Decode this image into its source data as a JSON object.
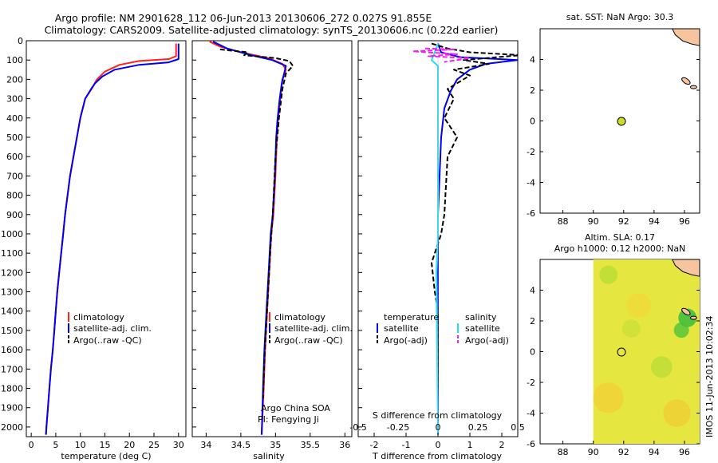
{
  "header": {
    "line1": "Argo profile: NM 2901628_112 06-Jun-2013 20130606_272 0.027S 91.855E",
    "line2": "Climatology: CARS2009. Satellite-adjusted climatology: synTS_20130606.nc (0.22d earlier)"
  },
  "side_stamp": "IMOS 11-Jun-2013 10:02:34",
  "colors": {
    "climatology": "#ff2020",
    "satellite": "#0000ee",
    "argo": "#000000",
    "sat_salinity": "#22e0ee",
    "argo_salinity": "#ee22ee",
    "land": "#f6c49e",
    "marker": "#ccdd22"
  },
  "chart_data": [
    {
      "type": "line",
      "id": "temperature",
      "xlabel": "temperature (deg C)",
      "xlim": [
        -1,
        31.5
      ],
      "xticks": [
        0,
        5,
        10,
        15,
        20,
        25,
        30
      ],
      "ylim": [
        2050,
        0
      ],
      "yticks": [
        0,
        100,
        200,
        300,
        400,
        500,
        600,
        700,
        800,
        900,
        1000,
        1100,
        1200,
        1300,
        1400,
        1500,
        1600,
        1700,
        1800,
        1900,
        2000
      ],
      "legend": [
        "climatology",
        "satellite-adj. clim.",
        "Argo(..raw -QC)"
      ],
      "series": [
        {
          "name": "climatology",
          "color": "climatology",
          "dash": false,
          "points": [
            [
              29.5,
              15
            ],
            [
              29.5,
              80
            ],
            [
              28,
              95
            ],
            [
              22,
              105
            ],
            [
              18,
              125
            ],
            [
              15,
              160
            ],
            [
              13.4,
              200
            ],
            [
              12.3,
              250
            ],
            [
              11,
              300
            ],
            [
              10,
              400
            ],
            [
              9.3,
              500
            ],
            [
              8.6,
              600
            ],
            [
              7.9,
              700
            ],
            [
              7.4,
              800
            ],
            [
              6.9,
              900
            ],
            [
              6.5,
              1000
            ],
            [
              6.1,
              1100
            ],
            [
              5.7,
              1200
            ],
            [
              5.3,
              1300
            ],
            [
              5,
              1400
            ],
            [
              4.7,
              1500
            ],
            [
              4.4,
              1600
            ],
            [
              4,
              1700
            ],
            [
              3.7,
              1800
            ],
            [
              3.4,
              1900
            ],
            [
              3.1,
              2000
            ],
            [
              3,
              2040
            ]
          ]
        },
        {
          "name": "satellite-adj. clim.",
          "color": "satellite",
          "dash": false,
          "points": [
            [
              30,
              15
            ],
            [
              30,
              95
            ],
            [
              28,
              112
            ],
            [
              22,
              125
            ],
            [
              17,
              150
            ],
            [
              14.5,
              185
            ],
            [
              13,
              220
            ],
            [
              12.2,
              250
            ],
            [
              11,
              300
            ],
            [
              10,
              400
            ],
            [
              9.3,
              500
            ],
            [
              8.6,
              600
            ],
            [
              7.9,
              700
            ],
            [
              7.4,
              800
            ],
            [
              6.9,
              900
            ],
            [
              6.5,
              1000
            ],
            [
              6.1,
              1100
            ],
            [
              5.7,
              1200
            ],
            [
              5.3,
              1300
            ],
            [
              5,
              1400
            ],
            [
              4.7,
              1500
            ],
            [
              4.4,
              1600
            ],
            [
              4,
              1700
            ],
            [
              3.7,
              1800
            ],
            [
              3.4,
              1900
            ],
            [
              3.1,
              2000
            ],
            [
              3,
              2040
            ]
          ]
        }
      ]
    },
    {
      "type": "line",
      "id": "salinity",
      "xlabel": "salinity",
      "xlim": [
        33.8,
        36.1
      ],
      "xticks": [
        34,
        34.5,
        35,
        35.5,
        36
      ],
      "ylim": [
        2050,
        0
      ],
      "legend": [
        "climatology",
        "satellite-adj. clim.",
        "Argo(..raw -QC)"
      ],
      "annotation": [
        "Argo China SOA",
        "PI: Fengying Ji"
      ],
      "series": [
        {
          "name": "climatology",
          "color": "climatology",
          "dash": false,
          "points": [
            [
              34.05,
              5
            ],
            [
              34.2,
              30
            ],
            [
              34.5,
              60
            ],
            [
              34.9,
              90
            ],
            [
              35.1,
              120
            ],
            [
              35.15,
              150
            ],
            [
              35.1,
              200
            ],
            [
              35.07,
              300
            ],
            [
              35.04,
              400
            ],
            [
              35.02,
              500
            ],
            [
              35.0,
              700
            ],
            [
              34.97,
              900
            ],
            [
              34.94,
              1000
            ],
            [
              34.91,
              1200
            ],
            [
              34.88,
              1400
            ],
            [
              34.85,
              1600
            ],
            [
              34.83,
              1800
            ],
            [
              34.8,
              2040
            ]
          ]
        },
        {
          "name": "satellite-adj. clim.",
          "color": "satellite",
          "dash": false,
          "points": [
            [
              34.1,
              5
            ],
            [
              34.3,
              40
            ],
            [
              34.65,
              75
            ],
            [
              34.95,
              100
            ],
            [
              35.15,
              130
            ],
            [
              35.13,
              160
            ],
            [
              35.09,
              220
            ],
            [
              35.06,
              300
            ],
            [
              35.03,
              400
            ],
            [
              35.01,
              500
            ],
            [
              34.99,
              700
            ],
            [
              34.96,
              900
            ],
            [
              34.93,
              1000
            ],
            [
              34.9,
              1200
            ],
            [
              34.87,
              1400
            ],
            [
              34.84,
              1600
            ],
            [
              34.82,
              1800
            ],
            [
              34.8,
              2040
            ]
          ]
        },
        {
          "name": "Argo(..raw -QC)",
          "color": "argo",
          "dash": true,
          "points": [
            [
              34.2,
              45
            ],
            [
              34.6,
              60
            ],
            [
              34.55,
              75
            ],
            [
              35.0,
              90
            ],
            [
              35.2,
              105
            ],
            [
              35.25,
              130
            ],
            [
              35.15,
              170
            ],
            [
              35.1,
              250
            ],
            [
              35.05,
              400
            ],
            [
              35.0,
              600
            ],
            [
              34.96,
              900
            ],
            [
              34.93,
              1050
            ],
            [
              34.9,
              1250
            ],
            [
              34.87,
              1450
            ],
            [
              34.84,
              1650
            ],
            [
              34.82,
              1850
            ]
          ]
        }
      ]
    },
    {
      "type": "line",
      "id": "difference",
      "xlabel": "T difference from climatology",
      "xlabel_top": "S difference from climatology",
      "xlim": [
        -2.5,
        2.5
      ],
      "xticks": [
        -2,
        -1,
        0,
        1,
        2
      ],
      "xticks_s": [
        -0.5,
        -0.25,
        0,
        0.25,
        0.5
      ],
      "xticks_s_labels": [
        "-0.5",
        "-0.25",
        "0",
        "0.25",
        "0.5"
      ],
      "ylim": [
        2050,
        0
      ],
      "legend_headers": [
        "temperature",
        "salinity"
      ],
      "legend": [
        "satellite",
        "Argo(-adj)",
        "satellite",
        "Argo(-adj)"
      ],
      "series": [
        {
          "name": "T satellite",
          "color": "satellite",
          "dash": false,
          "points": [
            [
              0,
              15
            ],
            [
              0.1,
              60
            ],
            [
              0.7,
              85
            ],
            [
              2.5,
              100
            ],
            [
              1.5,
              120
            ],
            [
              1.0,
              150
            ],
            [
              0.6,
              200
            ],
            [
              0.4,
              260
            ],
            [
              0.2,
              350
            ],
            [
              0.1,
              500
            ],
            [
              0.05,
              700
            ],
            [
              0,
              900
            ],
            [
              0,
              1200
            ],
            [
              0,
              2040
            ]
          ]
        },
        {
          "name": "T Argo(-adj)",
          "color": "argo",
          "dash": true,
          "points": [
            [
              -0.2,
              15
            ],
            [
              0.3,
              40
            ],
            [
              1.0,
              60
            ],
            [
              2.6,
              75
            ],
            [
              0.8,
              100
            ],
            [
              1.6,
              120
            ],
            [
              0.5,
              150
            ],
            [
              1.0,
              180
            ],
            [
              0.3,
              250
            ],
            [
              0.5,
              300
            ],
            [
              0.2,
              400
            ],
            [
              0.6,
              500
            ],
            [
              0.3,
              600
            ],
            [
              0.2,
              900
            ],
            [
              0.1,
              1000
            ],
            [
              -0.2,
              1150
            ],
            [
              -0.1,
              1300
            ],
            [
              0,
              1400
            ],
            [
              0,
              1800
            ]
          ]
        },
        {
          "name": "S satellite",
          "color": "sat_salinity",
          "dash": false,
          "points": [
            [
              0,
              15
            ],
            [
              -0.1,
              60
            ],
            [
              -0.2,
              100
            ],
            [
              0,
              130
            ],
            [
              0,
              300
            ],
            [
              0,
              700
            ],
            [
              0,
              1000
            ],
            [
              -0.05,
              1200
            ],
            [
              0,
              2040
            ]
          ]
        },
        {
          "name": "S Argo(-adj)",
          "color": "argo_salinity",
          "dash": true,
          "points": [
            [
              -0.4,
              40
            ],
            [
              0.5,
              45
            ],
            [
              -0.8,
              55
            ],
            [
              0.6,
              70
            ],
            [
              -0.3,
              80
            ],
            [
              1.0,
              90
            ],
            [
              0.2,
              110
            ]
          ]
        }
      ]
    },
    {
      "type": "scatter",
      "id": "map_sst",
      "title": "sat. SST: NaN Argo: 30.3",
      "xlim": [
        86.5,
        97
      ],
      "xticks": [
        88,
        90,
        92,
        94,
        96
      ],
      "ylim": [
        -6,
        6
      ],
      "yticks": [
        -6,
        -4,
        -2,
        0,
        2,
        4
      ],
      "argo_position": [
        91.855,
        -0.027
      ]
    },
    {
      "type": "heatmap",
      "id": "map_sla",
      "title_lines": [
        "Altim. SLA: 0.17",
        "Argo h1000: 0.12 h2000: NaN"
      ],
      "xlim": [
        86.5,
        97
      ],
      "xticks": [
        88,
        90,
        92,
        94,
        96
      ],
      "ylim": [
        -6,
        6
      ],
      "yticks": [
        -6,
        -4,
        -2,
        0,
        2,
        4
      ],
      "data_extent_lon": [
        90,
        97
      ],
      "argo_position": [
        91.855,
        -0.027
      ]
    }
  ]
}
